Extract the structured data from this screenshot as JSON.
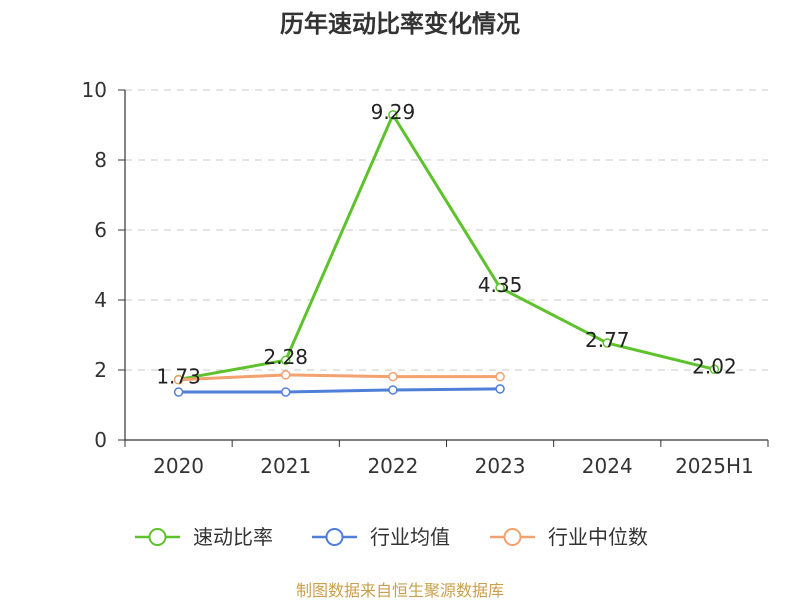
{
  "chart_data": {
    "type": "line",
    "title": "历年速动比率变化情况",
    "categories": [
      "2020",
      "2021",
      "2022",
      "2023",
      "2024",
      "2025H1"
    ],
    "series": [
      {
        "name": "速动比率",
        "values": [
          1.73,
          2.28,
          9.29,
          4.35,
          2.77,
          2.02
        ],
        "color": "#5dc22b",
        "data_labels": true
      },
      {
        "name": "行业均值",
        "values": [
          1.37,
          1.37,
          1.43,
          1.46,
          null,
          null
        ],
        "color": "#4f7fd8",
        "data_labels": false
      },
      {
        "name": "行业中位数",
        "values": [
          1.72,
          1.86,
          1.81,
          1.81,
          null,
          null
        ],
        "color": "#f3a16e",
        "data_labels": false
      }
    ],
    "ylim": [
      0,
      10
    ],
    "yticks": [
      0,
      2,
      4,
      6,
      8,
      10
    ],
    "grid": true,
    "legend": "bottom"
  },
  "footer": {
    "source": "制图数据来自恒生聚源数据库"
  }
}
